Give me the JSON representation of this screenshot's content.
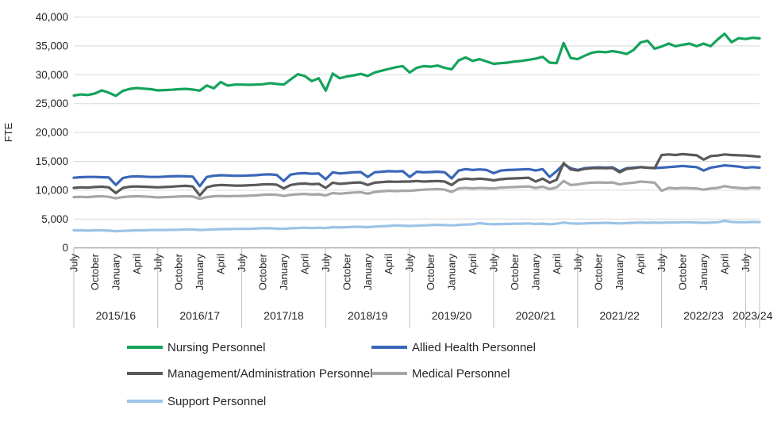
{
  "chart_data": {
    "type": "line",
    "title": "",
    "xlabel": "",
    "ylabel": "FTE",
    "ylim": [
      0,
      40000
    ],
    "grid": true,
    "legend_position": "bottom",
    "y_ticks": [
      0,
      5000,
      10000,
      15000,
      20000,
      25000,
      30000,
      35000,
      40000
    ],
    "y_tick_labels": [
      "0",
      "5,000",
      "10,000",
      "15,000",
      "20,000",
      "25,000",
      "30,000",
      "35,000",
      "40,000"
    ],
    "x_unit": "month",
    "x_range_description": "Monthly from July 2015 to September 2023",
    "x_structure": {
      "month_labels": [
        "July",
        "October",
        "January",
        "April"
      ],
      "years": [
        {
          "label": "2015/16",
          "start_index": 0,
          "n_months": 12
        },
        {
          "label": "2016/17",
          "start_index": 12,
          "n_months": 12
        },
        {
          "label": "2017/18",
          "start_index": 24,
          "n_months": 12
        },
        {
          "label": "2018/19",
          "start_index": 36,
          "n_months": 12
        },
        {
          "label": "2019/20",
          "start_index": 48,
          "n_months": 12
        },
        {
          "label": "2020/21",
          "start_index": 60,
          "n_months": 12
        },
        {
          "label": "2021/22",
          "start_index": 72,
          "n_months": 12
        },
        {
          "label": "2022/23",
          "start_index": 84,
          "n_months": 12
        },
        {
          "label": "2023/24",
          "start_index": 96,
          "n_months": 3
        }
      ]
    },
    "series": [
      {
        "name": "Nursing Personnel",
        "color": "#14A35B",
        "values": [
          26400,
          26600,
          26500,
          26750,
          27300,
          26900,
          26350,
          27200,
          27550,
          27700,
          27600,
          27500,
          27300,
          27350,
          27400,
          27500,
          27550,
          27450,
          27250,
          28150,
          27650,
          28750,
          28100,
          28300,
          28300,
          28250,
          28300,
          28350,
          28550,
          28400,
          28300,
          29200,
          30100,
          29800,
          28900,
          29400,
          27250,
          30200,
          29400,
          29700,
          29900,
          30150,
          29800,
          30400,
          30700,
          31000,
          31300,
          31500,
          30400,
          31200,
          31500,
          31400,
          31600,
          31200,
          30950,
          32500,
          33000,
          32400,
          32700,
          32300,
          31900,
          32000,
          32100,
          32300,
          32400,
          32600,
          32800,
          33100,
          32100,
          32000,
          35500,
          32900,
          32700,
          33300,
          33800,
          34000,
          33900,
          34100,
          33900,
          33600,
          34300,
          35600,
          35900,
          34500,
          34900,
          35400,
          34950,
          35200,
          35400,
          34950,
          35400,
          34950,
          36100,
          37100,
          35650,
          36330,
          36200,
          36400,
          36300
        ]
      },
      {
        "name": "Allied Health Personnel",
        "color": "#3A66B8",
        "values": [
          12150,
          12250,
          12300,
          12300,
          12250,
          12200,
          10900,
          12100,
          12350,
          12400,
          12350,
          12300,
          12300,
          12350,
          12400,
          12450,
          12400,
          12350,
          10700,
          12300,
          12500,
          12600,
          12550,
          12500,
          12500,
          12550,
          12600,
          12700,
          12750,
          12650,
          11600,
          12700,
          12900,
          12950,
          12850,
          12900,
          11900,
          13100,
          12900,
          13000,
          13100,
          13150,
          12300,
          13100,
          13200,
          13300,
          13250,
          13300,
          12300,
          13200,
          13100,
          13150,
          13200,
          13100,
          12050,
          13400,
          13650,
          13500,
          13600,
          13500,
          12950,
          13400,
          13500,
          13550,
          13600,
          13650,
          13400,
          13650,
          12300,
          13300,
          14500,
          13800,
          13500,
          13800,
          13900,
          13950,
          13900,
          13950,
          13300,
          13800,
          13900,
          14000,
          13900,
          13850,
          13900,
          14000,
          14100,
          14200,
          14100,
          14000,
          13400,
          13900,
          14100,
          14300,
          14200,
          14100,
          13900,
          14000,
          13900
        ]
      },
      {
        "name": "Management/Administration Personnel",
        "color": "#595959",
        "values": [
          10400,
          10500,
          10450,
          10550,
          10600,
          10500,
          9500,
          10400,
          10600,
          10650,
          10600,
          10550,
          10500,
          10550,
          10600,
          10700,
          10750,
          10650,
          9100,
          10500,
          10800,
          10900,
          10850,
          10800,
          10800,
          10850,
          10900,
          11000,
          11050,
          10950,
          10300,
          10900,
          11100,
          11150,
          11050,
          11100,
          10400,
          11300,
          11100,
          11200,
          11300,
          11350,
          10900,
          11300,
          11400,
          11500,
          11450,
          11500,
          11500,
          11600,
          11500,
          11550,
          11600,
          11500,
          10900,
          11800,
          12000,
          11900,
          12000,
          11900,
          11700,
          11900,
          12000,
          12050,
          12100,
          12150,
          11500,
          12000,
          11300,
          11800,
          14700,
          13600,
          13400,
          13700,
          13800,
          13850,
          13800,
          13850,
          13100,
          13700,
          13800,
          14000,
          13900,
          13800,
          16100,
          16200,
          16100,
          16250,
          16150,
          16050,
          15300,
          15900,
          16000,
          16200,
          16100,
          16050,
          16000,
          15900,
          15800
        ]
      },
      {
        "name": "Medical Personnel",
        "color": "#A6A6A6",
        "values": [
          8800,
          8850,
          8800,
          8900,
          8950,
          8850,
          8600,
          8800,
          8900,
          8950,
          8900,
          8850,
          8750,
          8800,
          8850,
          8900,
          8950,
          8900,
          8500,
          8800,
          8950,
          9000,
          8950,
          9000,
          9000,
          9050,
          9100,
          9200,
          9250,
          9200,
          9000,
          9200,
          9300,
          9350,
          9250,
          9300,
          9100,
          9500,
          9400,
          9500,
          9600,
          9650,
          9400,
          9700,
          9800,
          9900,
          9850,
          9900,
          9900,
          10000,
          10100,
          10150,
          10200,
          10100,
          9700,
          10300,
          10400,
          10300,
          10400,
          10350,
          10300,
          10450,
          10500,
          10550,
          10600,
          10650,
          10400,
          10600,
          10200,
          10500,
          11600,
          10900,
          11000,
          11200,
          11300,
          11350,
          11300,
          11350,
          11000,
          11200,
          11300,
          11500,
          11400,
          11300,
          9900,
          10400,
          10300,
          10400,
          10350,
          10300,
          10100,
          10300,
          10400,
          10700,
          10500,
          10400,
          10300,
          10450,
          10400
        ]
      },
      {
        "name": "Support Personnel",
        "color": "#9DC3E6",
        "values": [
          3050,
          3050,
          3000,
          3050,
          3050,
          3000,
          2900,
          2950,
          3000,
          3050,
          3050,
          3100,
          3100,
          3100,
          3150,
          3150,
          3200,
          3200,
          3100,
          3150,
          3200,
          3250,
          3250,
          3300,
          3300,
          3300,
          3350,
          3400,
          3400,
          3350,
          3300,
          3400,
          3450,
          3500,
          3450,
          3500,
          3450,
          3600,
          3550,
          3600,
          3650,
          3650,
          3600,
          3700,
          3750,
          3800,
          3900,
          3850,
          3800,
          3850,
          3900,
          3950,
          4000,
          3950,
          3900,
          4000,
          4050,
          4100,
          4300,
          4150,
          4100,
          4150,
          4150,
          4200,
          4200,
          4250,
          4150,
          4200,
          4100,
          4200,
          4400,
          4250,
          4200,
          4250,
          4300,
          4300,
          4350,
          4300,
          4250,
          4300,
          4350,
          4400,
          4350,
          4400,
          4350,
          4400,
          4400,
          4450,
          4450,
          4400,
          4350,
          4400,
          4450,
          4700,
          4500,
          4450,
          4450,
          4500,
          4480
        ]
      }
    ]
  },
  "colors": {
    "background": "#FFFFFF",
    "gridline": "#D9D9D9",
    "axis_line": "#8C8C8C",
    "separator": "#BFBFBF",
    "text": "#262626"
  }
}
